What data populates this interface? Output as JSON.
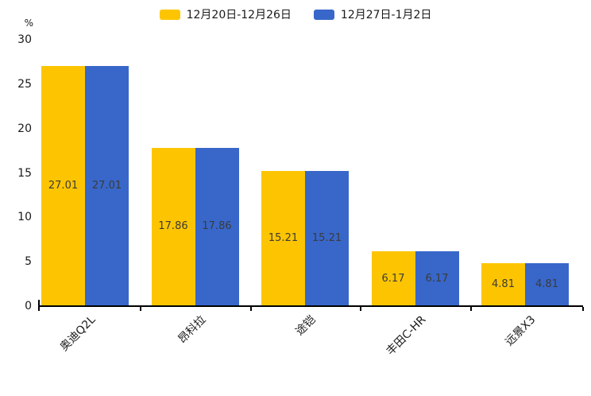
{
  "chart_data": {
    "type": "bar",
    "title": "",
    "categories": [
      "奥迪Q2L",
      "昂科拉",
      "途铠",
      "丰田C-HR",
      "远景X3"
    ],
    "series": [
      {
        "name": "12月20日-12月26日",
        "color": "#FDC501",
        "values": [
          27.01,
          17.86,
          15.21,
          6.17,
          4.81
        ]
      },
      {
        "name": "12月27日-1月2日",
        "color": "#3867C9",
        "values": [
          27.01,
          17.86,
          15.21,
          6.17,
          4.81
        ]
      }
    ],
    "xlabel": "",
    "ylabel": "%",
    "ylim": [
      0,
      30
    ],
    "yticks": [
      0,
      5,
      10,
      15,
      20,
      25,
      30
    ],
    "grid": false,
    "legend_position": "top",
    "value_labels_shown": true,
    "axis_color": "#000000",
    "tick_text_color": "#1a1a1a",
    "value_label_color": "#3b3b3b"
  }
}
